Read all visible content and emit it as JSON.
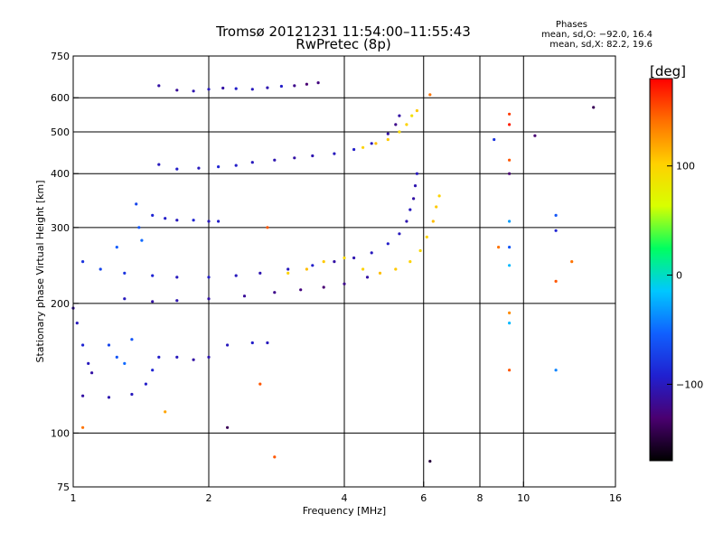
{
  "header": {
    "title_line1": "Tromsø 20121231 11:54:00–11:55:43",
    "title_line2": "RwPretec (8p)",
    "stats_heading": "Phases",
    "stats_o": "mean, sd,O: −92.0, 16.4",
    "stats_x": "mean, sd,X: 82.2, 19.6"
  },
  "colorbar": {
    "label": "[deg]",
    "min": -170,
    "max": 180,
    "ticks": [
      {
        "value": 100,
        "label": "100"
      },
      {
        "value": 0,
        "label": "0"
      },
      {
        "value": -100,
        "label": "−100"
      }
    ],
    "colors": [
      "#000000",
      "#4a0070",
      "#2020d0",
      "#1060ff",
      "#00c8ff",
      "#00ff60",
      "#d8ff00",
      "#ffd000",
      "#ff7000",
      "#ff0000"
    ]
  },
  "chart_data": {
    "type": "scatter",
    "title": "Tromsø 20121231 11:54:00–11:55:43 RwPretec (8p)",
    "xlabel": "Frequency [MHz]",
    "ylabel": "Stationary phase Virtual Height [km]",
    "x_scale": "log",
    "y_scale": "log",
    "xlim": [
      1,
      16
    ],
    "ylim": [
      75,
      750
    ],
    "grid": true,
    "x_ticks": [
      {
        "value": 1,
        "label": "1"
      },
      {
        "value": 2,
        "label": "2"
      },
      {
        "value": 4,
        "label": "4"
      },
      {
        "value": 6,
        "label": "6"
      },
      {
        "value": 8,
        "label": "8"
      },
      {
        "value": 10,
        "label": "10"
      },
      {
        "value": 16,
        "label": "16"
      }
    ],
    "y_ticks": [
      {
        "value": 75,
        "label": "75"
      },
      {
        "value": 100,
        "label": "100"
      },
      {
        "value": 200,
        "label": "200"
      },
      {
        "value": 300,
        "label": "300"
      },
      {
        "value": 400,
        "label": "400"
      },
      {
        "value": 500,
        "label": "500"
      },
      {
        "value": 600,
        "label": "600"
      },
      {
        "value": 750,
        "label": "750"
      }
    ],
    "series": [
      {
        "mode": "O",
        "points": [
          [
            1.55,
            640,
            -110
          ],
          [
            1.7,
            625,
            -115
          ],
          [
            1.85,
            622,
            -105
          ],
          [
            2.0,
            628,
            -100
          ],
          [
            2.15,
            632,
            -110
          ],
          [
            2.3,
            630,
            -95
          ],
          [
            2.5,
            628,
            -100
          ],
          [
            2.7,
            633,
            -105
          ],
          [
            2.9,
            638,
            -95
          ],
          [
            3.1,
            640,
            -120
          ],
          [
            3.3,
            645,
            -130
          ],
          [
            3.5,
            650,
            -125
          ],
          [
            1.55,
            420,
            -100
          ],
          [
            1.7,
            410,
            -95
          ],
          [
            1.9,
            412,
            -100
          ],
          [
            2.1,
            415,
            -90
          ],
          [
            2.3,
            418,
            -95
          ],
          [
            2.5,
            425,
            -100
          ],
          [
            2.8,
            430,
            -105
          ],
          [
            3.1,
            435,
            -110
          ],
          [
            3.4,
            440,
            -105
          ],
          [
            3.8,
            445,
            -100
          ],
          [
            4.2,
            455,
            -95
          ],
          [
            4.6,
            470,
            -100
          ],
          [
            5.0,
            495,
            -110
          ],
          [
            5.2,
            520,
            -120
          ],
          [
            5.3,
            545,
            -110
          ],
          [
            1.5,
            320,
            -90
          ],
          [
            1.6,
            315,
            -95
          ],
          [
            1.7,
            312,
            -100
          ],
          [
            1.85,
            312,
            -90
          ],
          [
            2.0,
            310,
            -100
          ],
          [
            2.1,
            310,
            -95
          ],
          [
            1.05,
            250,
            -80
          ],
          [
            1.15,
            240,
            -70
          ],
          [
            1.3,
            235,
            -80
          ],
          [
            1.5,
            232,
            -90
          ],
          [
            1.7,
            230,
            -100
          ],
          [
            2.0,
            230,
            -95
          ],
          [
            2.3,
            232,
            -100
          ],
          [
            2.6,
            235,
            -105
          ],
          [
            3.0,
            240,
            -100
          ],
          [
            3.4,
            245,
            -95
          ],
          [
            3.8,
            250,
            -110
          ],
          [
            4.2,
            255,
            -105
          ],
          [
            4.6,
            262,
            -100
          ],
          [
            5.0,
            275,
            -95
          ],
          [
            5.3,
            290,
            -100
          ],
          [
            5.5,
            310,
            -105
          ],
          [
            5.6,
            330,
            -100
          ],
          [
            5.7,
            350,
            -110
          ],
          [
            5.75,
            375,
            -105
          ],
          [
            5.8,
            400,
            -100
          ],
          [
            1.3,
            205,
            -100
          ],
          [
            1.5,
            202,
            -110
          ],
          [
            1.7,
            203,
            -105
          ],
          [
            2.0,
            205,
            -110
          ],
          [
            2.4,
            208,
            -115
          ],
          [
            2.8,
            212,
            -120
          ],
          [
            3.2,
            215,
            -125
          ],
          [
            3.6,
            218,
            -130
          ],
          [
            4.0,
            222,
            -120
          ],
          [
            4.5,
            230,
            -110
          ],
          [
            1.0,
            195,
            -110
          ],
          [
            1.02,
            180,
            -100
          ],
          [
            1.05,
            160,
            -90
          ],
          [
            1.08,
            145,
            -100
          ],
          [
            1.1,
            138,
            -110
          ],
          [
            1.05,
            122,
            -110
          ],
          [
            1.2,
            121,
            -105
          ],
          [
            1.35,
            123,
            -100
          ],
          [
            1.45,
            130,
            -95
          ],
          [
            1.5,
            140,
            -90
          ],
          [
            1.55,
            150,
            -95
          ],
          [
            1.7,
            150,
            -100
          ],
          [
            1.85,
            148,
            -110
          ],
          [
            2.0,
            150,
            -105
          ],
          [
            2.2,
            160,
            -100
          ],
          [
            2.5,
            162,
            -95
          ],
          [
            2.7,
            162,
            -100
          ],
          [
            1.25,
            150,
            -60
          ],
          [
            1.3,
            145,
            -50
          ],
          [
            1.2,
            160,
            -70
          ],
          [
            1.35,
            165,
            -60
          ],
          [
            1.4,
            300,
            -60
          ],
          [
            1.42,
            280,
            -50
          ],
          [
            1.38,
            340,
            -70
          ],
          [
            1.25,
            270,
            -55
          ]
        ]
      },
      {
        "mode": "X",
        "points": [
          [
            4.4,
            460,
            100
          ],
          [
            4.7,
            470,
            110
          ],
          [
            5.0,
            480,
            105
          ],
          [
            5.3,
            500,
            95
          ],
          [
            5.5,
            520,
            100
          ],
          [
            5.65,
            545,
            90
          ],
          [
            5.8,
            560,
            105
          ],
          [
            3.0,
            235,
            100
          ],
          [
            3.3,
            240,
            110
          ],
          [
            3.6,
            250,
            105
          ],
          [
            4.0,
            255,
            95
          ],
          [
            4.4,
            240,
            100
          ],
          [
            4.8,
            235,
            110
          ],
          [
            5.2,
            240,
            105
          ],
          [
            5.6,
            250,
            100
          ],
          [
            5.9,
            265,
            95
          ],
          [
            6.1,
            285,
            100
          ],
          [
            6.3,
            310,
            110
          ],
          [
            6.4,
            335,
            105
          ],
          [
            6.5,
            355,
            100
          ],
          [
            6.2,
            610,
            140
          ],
          [
            9.3,
            550,
            160
          ],
          [
            9.3,
            520,
            170
          ],
          [
            9.3,
            430,
            150
          ],
          [
            9.3,
            400,
            -130
          ],
          [
            9.3,
            310,
            -30
          ],
          [
            9.3,
            270,
            -60
          ],
          [
            9.3,
            245,
            -20
          ],
          [
            9.3,
            190,
            130
          ],
          [
            9.3,
            180,
            -20
          ],
          [
            9.3,
            140,
            150
          ],
          [
            8.8,
            270,
            140
          ],
          [
            8.6,
            480,
            -80
          ],
          [
            10.6,
            490,
            -130
          ],
          [
            11.8,
            320,
            -60
          ],
          [
            11.8,
            295,
            -90
          ],
          [
            11.8,
            225,
            150
          ],
          [
            11.8,
            140,
            -40
          ],
          [
            14.3,
            570,
            -140
          ],
          [
            12.8,
            250,
            140
          ],
          [
            1.05,
            103,
            140
          ],
          [
            1.6,
            112,
            120
          ],
          [
            2.2,
            103,
            -140
          ],
          [
            2.6,
            130,
            150
          ],
          [
            2.7,
            300,
            150
          ],
          [
            2.8,
            88,
            150
          ],
          [
            6.2,
            86,
            -150
          ]
        ]
      }
    ]
  }
}
